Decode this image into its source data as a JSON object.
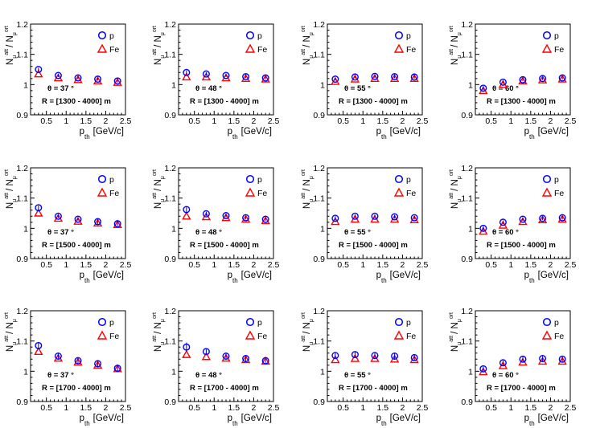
{
  "common": {
    "ylabel_main": "N",
    "ylabel_sub": "μ",
    "ylabel_sup_num": "att",
    "ylabel_sup_den": "ort",
    "ylabel_slash": "/ N",
    "xlabel_main": "p",
    "xlabel_sub": "th",
    "xlabel_unit": "[GeV/c]",
    "xticks": [
      "0.5",
      "1",
      "1.5",
      "2",
      "2.5"
    ],
    "yticks": [
      "0.9",
      "1",
      "1.1",
      "1.2"
    ],
    "xlim": [
      0.1,
      2.5
    ],
    "ylim": [
      0.9,
      1.2
    ],
    "legend": [
      "p",
      "Fe"
    ],
    "colors": {
      "p": "#0000ff",
      "Fe": "#ff0000"
    }
  },
  "chart_data": [
    {
      "type": "scatter",
      "theta": "θ = 37 °",
      "range": "R = [1300 - 4000] m",
      "x": [
        0.3,
        0.8,
        1.3,
        1.8,
        2.3
      ],
      "series": [
        {
          "name": "p",
          "values": [
            1.05,
            1.03,
            1.022,
            1.018,
            1.012
          ],
          "errors": [
            0.006,
            0.005,
            0.005,
            0.005,
            0.005
          ]
        },
        {
          "name": "Fe",
          "values": [
            1.035,
            1.022,
            1.016,
            1.012,
            1.007
          ]
        }
      ]
    },
    {
      "type": "scatter",
      "theta": "θ = 48 °",
      "range": "R = [1300 - 4000] m",
      "x": [
        0.3,
        0.8,
        1.3,
        1.8,
        2.3
      ],
      "series": [
        {
          "name": "p",
          "values": [
            1.04,
            1.035,
            1.03,
            1.026,
            1.022
          ],
          "errors": [
            0.007,
            0.006,
            0.005,
            0.005,
            0.005
          ]
        },
        {
          "name": "Fe",
          "values": [
            1.025,
            1.025,
            1.022,
            1.02,
            1.018
          ]
        }
      ]
    },
    {
      "type": "scatter",
      "theta": "θ = 55 °",
      "range": "R = [1300 - 4000] m",
      "x": [
        0.3,
        0.8,
        1.3,
        1.8,
        2.3
      ],
      "series": [
        {
          "name": "p",
          "values": [
            1.018,
            1.025,
            1.027,
            1.026,
            1.025
          ],
          "errors": [
            0.005,
            0.005,
            0.005,
            0.005,
            0.005
          ]
        },
        {
          "name": "Fe",
          "values": [
            1.01,
            1.018,
            1.02,
            1.02,
            1.02
          ]
        }
      ]
    },
    {
      "type": "scatter",
      "theta": "θ = 60 °",
      "range": "R = [1300 - 4000] m",
      "x": [
        0.3,
        0.8,
        1.3,
        1.8,
        2.3
      ],
      "series": [
        {
          "name": "p",
          "values": [
            0.988,
            1.008,
            1.016,
            1.02,
            1.022
          ],
          "errors": [
            0.007,
            0.006,
            0.005,
            0.005,
            0.005
          ]
        },
        {
          "name": "Fe",
          "values": [
            0.98,
            1.0,
            1.012,
            1.015,
            1.018
          ]
        }
      ]
    },
    {
      "type": "scatter",
      "theta": "θ = 37 °",
      "range": "R = [1500 - 4000] m",
      "x": [
        0.3,
        0.8,
        1.3,
        1.8,
        2.3
      ],
      "series": [
        {
          "name": "p",
          "values": [
            1.068,
            1.04,
            1.03,
            1.022,
            1.015
          ],
          "errors": [
            0.007,
            0.006,
            0.006,
            0.01,
            0.006
          ]
        },
        {
          "name": "Fe",
          "values": [
            1.05,
            1.033,
            1.023,
            1.017,
            1.012
          ]
        }
      ]
    },
    {
      "type": "scatter",
      "theta": "θ = 48 °",
      "range": "R = [1500 - 4000] m",
      "x": [
        0.3,
        0.8,
        1.3,
        1.8,
        2.3
      ],
      "series": [
        {
          "name": "p",
          "values": [
            1.062,
            1.048,
            1.042,
            1.035,
            1.03
          ],
          "errors": [
            0.009,
            0.007,
            0.006,
            0.006,
            0.005
          ]
        },
        {
          "name": "Fe",
          "values": [
            1.04,
            1.038,
            1.035,
            1.03,
            1.025
          ]
        }
      ]
    },
    {
      "type": "scatter",
      "theta": "θ = 55 °",
      "range": "R = [1500 - 4000] m",
      "x": [
        0.3,
        0.8,
        1.3,
        1.8,
        2.3
      ],
      "series": [
        {
          "name": "p",
          "values": [
            1.033,
            1.04,
            1.04,
            1.038,
            1.035
          ],
          "errors": [
            0.007,
            0.006,
            0.006,
            0.006,
            0.006
          ]
        },
        {
          "name": "Fe",
          "values": [
            1.022,
            1.03,
            1.03,
            1.03,
            1.028
          ]
        }
      ]
    },
    {
      "type": "scatter",
      "theta": "θ = 60 °",
      "range": "R = [1500 - 4000] m",
      "x": [
        0.3,
        0.8,
        1.3,
        1.8,
        2.3
      ],
      "series": [
        {
          "name": "p",
          "values": [
            1.0,
            1.02,
            1.03,
            1.033,
            1.035
          ],
          "errors": [
            0.007,
            0.006,
            0.006,
            0.006,
            0.006
          ]
        },
        {
          "name": "Fe",
          "values": [
            0.99,
            1.01,
            1.022,
            1.028,
            1.03
          ]
        }
      ]
    },
    {
      "type": "scatter",
      "theta": "θ = 37 °",
      "range": "R = [1700 - 4000] m",
      "x": [
        0.3,
        0.8,
        1.3,
        1.8,
        2.3
      ],
      "series": [
        {
          "name": "p",
          "values": [
            1.085,
            1.05,
            1.035,
            1.025,
            1.01
          ],
          "errors": [
            0.01,
            0.008,
            0.008,
            0.01,
            0.01
          ]
        },
        {
          "name": "Fe",
          "values": [
            1.065,
            1.043,
            1.03,
            1.02,
            1.008
          ]
        }
      ]
    },
    {
      "type": "scatter",
      "theta": "θ = 48 °",
      "range": "R = [1700 - 4000] m",
      "x": [
        0.3,
        0.8,
        1.3,
        1.8,
        2.3
      ],
      "series": [
        {
          "name": "p",
          "values": [
            1.08,
            1.065,
            1.05,
            1.042,
            1.035
          ],
          "errors": [
            0.015,
            0.008,
            0.008,
            0.008,
            0.007
          ]
        },
        {
          "name": "Fe",
          "values": [
            1.055,
            1.048,
            1.043,
            1.038,
            1.033
          ]
        }
      ]
    },
    {
      "type": "scatter",
      "theta": "θ = 55 °",
      "range": "R = [1700 - 4000] m",
      "x": [
        0.3,
        0.8,
        1.3,
        1.8,
        2.3
      ],
      "series": [
        {
          "name": "p",
          "values": [
            1.052,
            1.055,
            1.052,
            1.05,
            1.045
          ],
          "errors": [
            0.01,
            0.01,
            0.01,
            0.012,
            0.01
          ]
        },
        {
          "name": "Fe",
          "values": [
            1.038,
            1.042,
            1.042,
            1.04,
            1.038
          ]
        }
      ]
    },
    {
      "type": "scatter",
      "theta": "θ = 60 °",
      "range": "R = [1700 - 4000] m",
      "x": [
        0.3,
        0.8,
        1.3,
        1.8,
        2.3
      ],
      "series": [
        {
          "name": "p",
          "values": [
            1.008,
            1.028,
            1.04,
            1.042,
            1.04
          ],
          "errors": [
            0.008,
            0.008,
            0.01,
            0.008,
            0.008
          ]
        },
        {
          "name": "Fe",
          "values": [
            0.998,
            1.018,
            1.03,
            1.033,
            1.033
          ]
        }
      ]
    }
  ]
}
